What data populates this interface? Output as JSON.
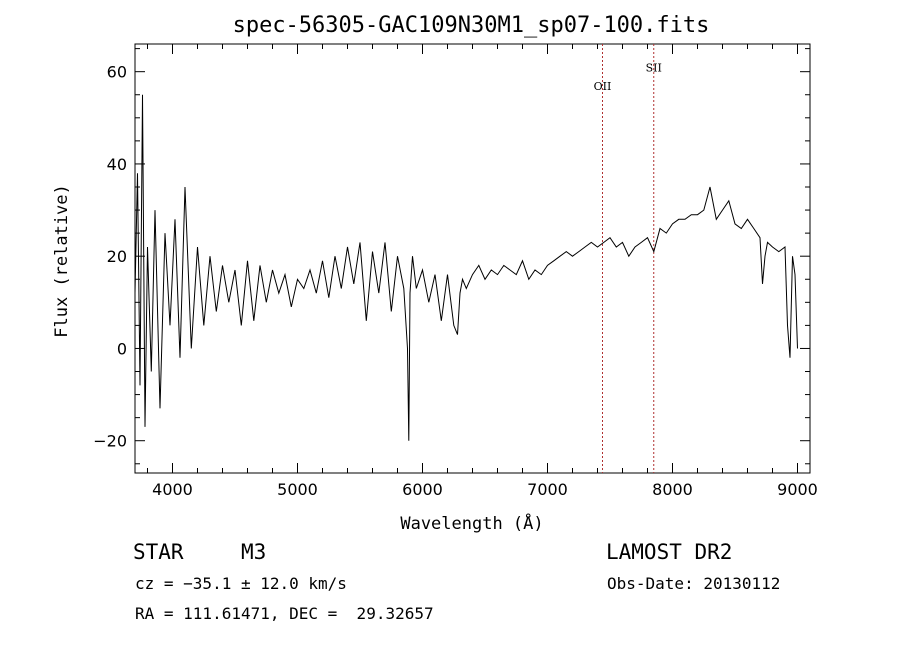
{
  "chart_data": {
    "type": "line",
    "title": "spec-56305-GAC109N30M1_sp07-100.fits",
    "xlabel": "Wavelength (Å)",
    "ylabel": "Flux (relative)",
    "xlim": [
      3700,
      9100
    ],
    "ylim": [
      -27,
      66
    ],
    "xticks": [
      4000,
      5000,
      6000,
      7000,
      8000,
      9000
    ],
    "yticks": [
      -20,
      0,
      20,
      40,
      60
    ],
    "grid": false,
    "series": [
      {
        "x": [
          3700,
          3720,
          3740,
          3760,
          3780,
          3800,
          3830,
          3860,
          3900,
          3940,
          3980,
          4020,
          4060,
          4100,
          4150,
          4200,
          4250,
          4300,
          4350,
          4400,
          4450,
          4500,
          4550,
          4600,
          4650,
          4700,
          4750,
          4800,
          4850,
          4900,
          4950,
          5000,
          5050,
          5100,
          5150,
          5200,
          5250,
          5300,
          5350,
          5400,
          5450,
          5500,
          5550,
          5600,
          5650,
          5700,
          5750,
          5800,
          5850,
          5880,
          5890,
          5900,
          5920,
          5950,
          6000,
          6050,
          6100,
          6150,
          6200,
          6250,
          6280,
          6300,
          6320,
          6350,
          6400,
          6450,
          6500,
          6550,
          6600,
          6650,
          6700,
          6750,
          6800,
          6850,
          6900,
          6950,
          7000,
          7050,
          7100,
          7150,
          7200,
          7250,
          7300,
          7350,
          7400,
          7450,
          7500,
          7550,
          7600,
          7650,
          7700,
          7750,
          7800,
          7850,
          7900,
          7950,
          8000,
          8050,
          8100,
          8150,
          8200,
          8250,
          8300,
          8350,
          8400,
          8450,
          8500,
          8550,
          8600,
          8650,
          8700,
          8720,
          8740,
          8760,
          8800,
          8850,
          8900,
          8920,
          8940,
          8960,
          8980,
          9000
        ],
        "values": [
          12,
          38,
          -8,
          55,
          -17,
          22,
          -5,
          30,
          -13,
          25,
          5,
          28,
          -2,
          35,
          0,
          22,
          5,
          20,
          8,
          18,
          10,
          17,
          5,
          19,
          6,
          18,
          10,
          17,
          12,
          16,
          9,
          15,
          13,
          17,
          12,
          19,
          11,
          20,
          13,
          22,
          14,
          23,
          6,
          21,
          12,
          23,
          8,
          20,
          13,
          0,
          -20,
          12,
          20,
          13,
          17,
          10,
          16,
          6,
          16,
          5,
          3,
          12,
          15,
          13,
          16,
          18,
          15,
          17,
          16,
          18,
          17,
          16,
          19,
          15,
          17,
          16,
          18,
          19,
          20,
          21,
          20,
          21,
          22,
          23,
          22,
          23,
          24,
          22,
          23,
          20,
          22,
          23,
          24,
          21,
          26,
          25,
          27,
          28,
          28,
          29,
          29,
          30,
          35,
          28,
          30,
          32,
          27,
          26,
          28,
          26,
          24,
          14,
          20,
          23,
          22,
          21,
          22,
          5,
          -2,
          20,
          16,
          0
        ]
      }
    ],
    "annotations": [
      {
        "label": "OII",
        "x": 7440,
        "text_y": 56
      },
      {
        "label": "SII",
        "x": 7850,
        "text_y": 60
      }
    ]
  },
  "footer": {
    "object_type": "STAR",
    "subclass": "M3",
    "survey": "LAMOST DR2",
    "cz": "cz = −35.1 ± 12.0 km/s",
    "obs_date": "Obs-Date: 20130112",
    "coords": "RA = 111.61471, DEC =  29.32657"
  }
}
